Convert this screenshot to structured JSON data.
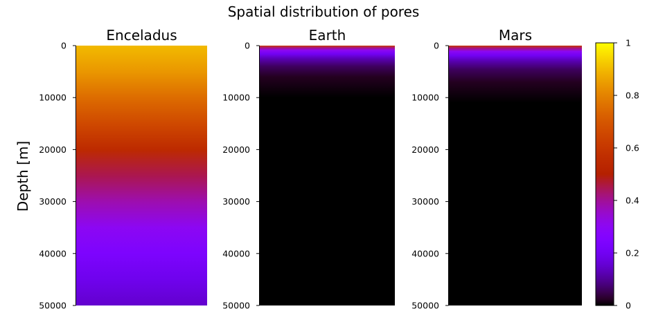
{
  "chart_data": {
    "type": "heatmap",
    "title": "Spatial distribution of pores",
    "ylabel": "Depth [m]",
    "ylim": [
      0,
      50000
    ],
    "y_ticks": [
      "0",
      "10000",
      "20000",
      "30000",
      "40000",
      "50000"
    ],
    "y_tick_values": [
      0,
      10000,
      20000,
      30000,
      40000,
      50000
    ],
    "colormap": "gnuplot",
    "colorbar": {
      "range": [
        0,
        1
      ],
      "ticks": [
        "0",
        "0.2",
        "0.4",
        "0.6",
        "0.8",
        "1"
      ],
      "tick_values": [
        0,
        0.2,
        0.4,
        0.6,
        0.8,
        1
      ]
    },
    "panels": [
      {
        "name": "Enceladus",
        "profile": [
          {
            "depth": 0,
            "value": 0.9
          },
          {
            "depth": 5000,
            "value": 0.84
          },
          {
            "depth": 10000,
            "value": 0.75
          },
          {
            "depth": 15000,
            "value": 0.66
          },
          {
            "depth": 20000,
            "value": 0.55
          },
          {
            "depth": 25000,
            "value": 0.45
          },
          {
            "depth": 30000,
            "value": 0.38
          },
          {
            "depth": 35000,
            "value": 0.3
          },
          {
            "depth": 40000,
            "value": 0.24
          },
          {
            "depth": 45000,
            "value": 0.19
          },
          {
            "depth": 50000,
            "value": 0.15
          }
        ]
      },
      {
        "name": "Earth",
        "profile": [
          {
            "depth": 0,
            "value": 0.62
          },
          {
            "depth": 400,
            "value": 0.42
          },
          {
            "depth": 900,
            "value": 0.3
          },
          {
            "depth": 1600,
            "value": 0.2
          },
          {
            "depth": 2600,
            "value": 0.12
          },
          {
            "depth": 4000,
            "value": 0.06
          },
          {
            "depth": 6000,
            "value": 0.02
          },
          {
            "depth": 10000,
            "value": 0.0
          },
          {
            "depth": 50000,
            "value": 0.0
          }
        ]
      },
      {
        "name": "Mars",
        "profile": [
          {
            "depth": 0,
            "value": 0.6
          },
          {
            "depth": 500,
            "value": 0.42
          },
          {
            "depth": 1100,
            "value": 0.3
          },
          {
            "depth": 1900,
            "value": 0.2
          },
          {
            "depth": 3000,
            "value": 0.12
          },
          {
            "depth": 4600,
            "value": 0.06
          },
          {
            "depth": 7000,
            "value": 0.02
          },
          {
            "depth": 11000,
            "value": 0.0
          },
          {
            "depth": 50000,
            "value": 0.0
          }
        ]
      }
    ]
  }
}
